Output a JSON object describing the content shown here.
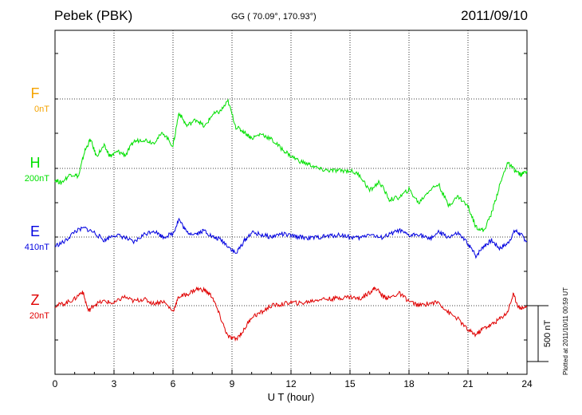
{
  "header": {
    "station": "Pebek (PBK)",
    "coords": "GG ( 70.09°, 170.93°)",
    "date": "2011/09/10"
  },
  "footer": {
    "plotted": "Plotted at 2011/10/11 00:59 UT"
  },
  "colors": {
    "F": "#f5a300",
    "H": "#00e000",
    "E": "#0000e0",
    "Z": "#e00000"
  },
  "chart_data": {
    "type": "line",
    "xlabel": "U T (hour)",
    "xlim": [
      0,
      24
    ],
    "xticks": [
      "0",
      "3",
      "6",
      "9",
      "12",
      "15",
      "18",
      "21",
      "24"
    ],
    "scale_bar": "500 nT",
    "components": [
      {
        "name": "F",
        "baseline": "0nT",
        "points": []
      },
      {
        "name": "H",
        "baseline": "200nT",
        "points": [
          [
            0,
            -100
          ],
          [
            0.3,
            -130
          ],
          [
            0.8,
            -50
          ],
          [
            1.2,
            -70
          ],
          [
            1.5,
            150
          ],
          [
            1.8,
            260
          ],
          [
            2.1,
            110
          ],
          [
            2.5,
            200
          ],
          [
            2.8,
            110
          ],
          [
            3.2,
            150
          ],
          [
            3.6,
            120
          ],
          [
            4.0,
            240
          ],
          [
            4.5,
            260
          ],
          [
            5.0,
            230
          ],
          [
            5.5,
            320
          ],
          [
            6.0,
            200
          ],
          [
            6.3,
            500
          ],
          [
            6.7,
            380
          ],
          [
            7.2,
            440
          ],
          [
            7.6,
            370
          ],
          [
            8.0,
            480
          ],
          [
            8.4,
            510
          ],
          [
            8.8,
            600
          ],
          [
            9.2,
            370
          ],
          [
            9.6,
            330
          ],
          [
            10.0,
            270
          ],
          [
            10.5,
            310
          ],
          [
            11.0,
            260
          ],
          [
            11.5,
            180
          ],
          [
            12.0,
            110
          ],
          [
            12.5,
            60
          ],
          [
            13.0,
            30
          ],
          [
            13.5,
            -10
          ],
          [
            14.0,
            -20
          ],
          [
            14.5,
            -20
          ],
          [
            15.0,
            -20
          ],
          [
            15.5,
            -60
          ],
          [
            16.0,
            -200
          ],
          [
            16.5,
            -120
          ],
          [
            17.0,
            -280
          ],
          [
            17.5,
            -260
          ],
          [
            18.0,
            -190
          ],
          [
            18.5,
            -310
          ],
          [
            19.0,
            -200
          ],
          [
            19.5,
            -140
          ],
          [
            20.0,
            -330
          ],
          [
            20.5,
            -250
          ],
          [
            21.0,
            -340
          ],
          [
            21.4,
            -520
          ],
          [
            21.8,
            -560
          ],
          [
            22.2,
            -400
          ],
          [
            22.6,
            -160
          ],
          [
            23.0,
            50
          ],
          [
            23.4,
            -20
          ],
          [
            23.7,
            -60
          ],
          [
            24.0,
            -20
          ]
        ]
      },
      {
        "name": "E",
        "baseline": "410nT",
        "points": [
          [
            0,
            -80
          ],
          [
            0.5,
            -40
          ],
          [
            1.0,
            50
          ],
          [
            1.5,
            80
          ],
          [
            2.0,
            40
          ],
          [
            2.5,
            -30
          ],
          [
            3.0,
            20
          ],
          [
            3.5,
            0
          ],
          [
            4.0,
            -50
          ],
          [
            4.5,
            20
          ],
          [
            5.0,
            60
          ],
          [
            5.5,
            0
          ],
          [
            6.0,
            30
          ],
          [
            6.3,
            160
          ],
          [
            6.7,
            40
          ],
          [
            7.2,
            30
          ],
          [
            7.6,
            60
          ],
          [
            8.0,
            0
          ],
          [
            8.4,
            -20
          ],
          [
            8.8,
            -80
          ],
          [
            9.2,
            -150
          ],
          [
            9.6,
            -40
          ],
          [
            10.0,
            40
          ],
          [
            10.5,
            20
          ],
          [
            11.0,
            0
          ],
          [
            11.5,
            30
          ],
          [
            12.0,
            10
          ],
          [
            12.5,
            0
          ],
          [
            13.0,
            -10
          ],
          [
            13.5,
            0
          ],
          [
            14.0,
            10
          ],
          [
            14.5,
            20
          ],
          [
            15.0,
            0
          ],
          [
            15.5,
            -10
          ],
          [
            16.0,
            30
          ],
          [
            16.5,
            -10
          ],
          [
            17.0,
            20
          ],
          [
            17.5,
            60
          ],
          [
            18.0,
            10
          ],
          [
            18.5,
            30
          ],
          [
            19.0,
            -20
          ],
          [
            19.5,
            40
          ],
          [
            20.0,
            0
          ],
          [
            20.5,
            30
          ],
          [
            21.0,
            -60
          ],
          [
            21.4,
            -170
          ],
          [
            21.8,
            -80
          ],
          [
            22.2,
            -30
          ],
          [
            22.6,
            -100
          ],
          [
            23.0,
            -60
          ],
          [
            23.4,
            60
          ],
          [
            23.7,
            20
          ],
          [
            24.0,
            -40
          ]
        ]
      },
      {
        "name": "Z",
        "baseline": "20nT",
        "points": [
          [
            0,
            0
          ],
          [
            0.5,
            20
          ],
          [
            1.0,
            60
          ],
          [
            1.4,
            130
          ],
          [
            1.7,
            -50
          ],
          [
            2.0,
            10
          ],
          [
            2.5,
            40
          ],
          [
            3.0,
            20
          ],
          [
            3.5,
            80
          ],
          [
            4.0,
            40
          ],
          [
            4.5,
            60
          ],
          [
            5.0,
            20
          ],
          [
            5.5,
            40
          ],
          [
            6.0,
            -50
          ],
          [
            6.3,
            80
          ],
          [
            6.7,
            100
          ],
          [
            7.2,
            150
          ],
          [
            7.6,
            140
          ],
          [
            8.0,
            80
          ],
          [
            8.4,
            -100
          ],
          [
            8.8,
            -280
          ],
          [
            9.2,
            -300
          ],
          [
            9.6,
            -220
          ],
          [
            10.0,
            -100
          ],
          [
            10.5,
            -60
          ],
          [
            11.0,
            0
          ],
          [
            11.5,
            10
          ],
          [
            12.0,
            30
          ],
          [
            12.5,
            20
          ],
          [
            13.0,
            40
          ],
          [
            13.5,
            60
          ],
          [
            14.0,
            60
          ],
          [
            14.5,
            70
          ],
          [
            15.0,
            80
          ],
          [
            15.5,
            60
          ],
          [
            16.0,
            120
          ],
          [
            16.3,
            160
          ],
          [
            16.7,
            80
          ],
          [
            17.0,
            70
          ],
          [
            17.5,
            110
          ],
          [
            18.0,
            40
          ],
          [
            18.5,
            0
          ],
          [
            19.0,
            20
          ],
          [
            19.5,
            30
          ],
          [
            20.0,
            -60
          ],
          [
            20.5,
            -120
          ],
          [
            21.0,
            -220
          ],
          [
            21.4,
            -260
          ],
          [
            21.8,
            -200
          ],
          [
            22.2,
            -170
          ],
          [
            22.6,
            -120
          ],
          [
            23.0,
            -60
          ],
          [
            23.3,
            100
          ],
          [
            23.6,
            -20
          ],
          [
            24.0,
            -10
          ]
        ]
      }
    ]
  }
}
